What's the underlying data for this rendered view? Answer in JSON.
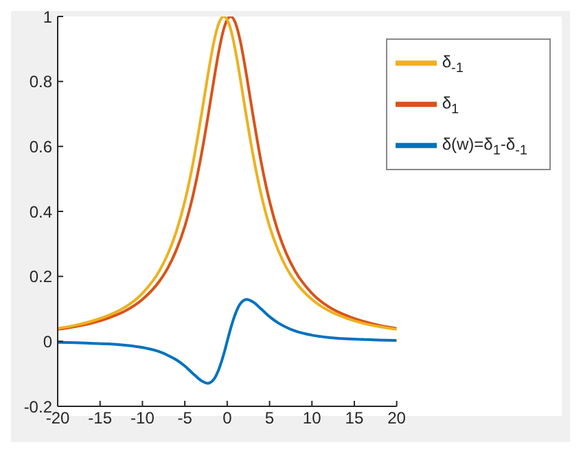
{
  "chart_data": {
    "type": "line",
    "x": [
      -20,
      -18,
      -16,
      -14,
      -12,
      -10,
      -8,
      -7,
      -6,
      -5,
      -4,
      -3,
      -2.3,
      -1.5,
      -1,
      -0.4,
      0,
      0.4,
      1,
      1.5,
      2.3,
      3,
      4,
      5,
      6,
      7,
      8,
      10,
      12,
      14,
      16,
      18,
      20
    ],
    "series": [
      {
        "name": "δ(w)=δ$_{1}$-δ$_{-1}$",
        "color": "#0072bd",
        "values": [
          -0.003,
          -0.004,
          -0.006,
          -0.008,
          -0.012,
          -0.019,
          -0.032,
          -0.043,
          -0.057,
          -0.076,
          -0.1,
          -0.122,
          -0.129,
          -0.114,
          -0.087,
          -0.039,
          0,
          0.039,
          0.087,
          0.114,
          0.129,
          0.122,
          0.1,
          0.076,
          0.057,
          0.043,
          0.032,
          0.019,
          0.012,
          0.008,
          0.006,
          0.004,
          0.003
        ]
      },
      {
        "name": "δ$_{1}$",
        "color": "#d95319",
        "values": [
          0.037,
          0.045,
          0.056,
          0.072,
          0.094,
          0.129,
          0.185,
          0.226,
          0.281,
          0.354,
          0.453,
          0.581,
          0.687,
          0.816,
          0.891,
          0.962,
          0.99,
          1,
          0.978,
          0.93,
          0.816,
          0.703,
          0.553,
          0.431,
          0.338,
          0.269,
          0.217,
          0.148,
          0.106,
          0.08,
          0.062,
          0.049,
          0.04
        ]
      },
      {
        "name": "δ$_{-1}$",
        "color": "#edb120",
        "values": [
          0.04,
          0.049,
          0.062,
          0.08,
          0.106,
          0.148,
          0.217,
          0.269,
          0.338,
          0.431,
          0.553,
          0.703,
          0.816,
          0.93,
          0.978,
          1,
          0.99,
          0.962,
          0.891,
          0.816,
          0.687,
          0.581,
          0.453,
          0.354,
          0.281,
          0.226,
          0.185,
          0.129,
          0.094,
          0.072,
          0.056,
          0.045,
          0.037
        ]
      }
    ],
    "xlim": [
      -20,
      20
    ],
    "xticks": [
      -20,
      -15,
      -10,
      -5,
      0,
      5,
      10,
      15,
      20
    ],
    "ylim": [
      -0.2,
      1
    ],
    "yticks": [
      -0.2,
      0,
      0.2,
      0.4,
      0.6,
      0.8,
      1
    ],
    "grid": false,
    "legend": "top right",
    "marker": "none",
    "line_style": "solid"
  }
}
